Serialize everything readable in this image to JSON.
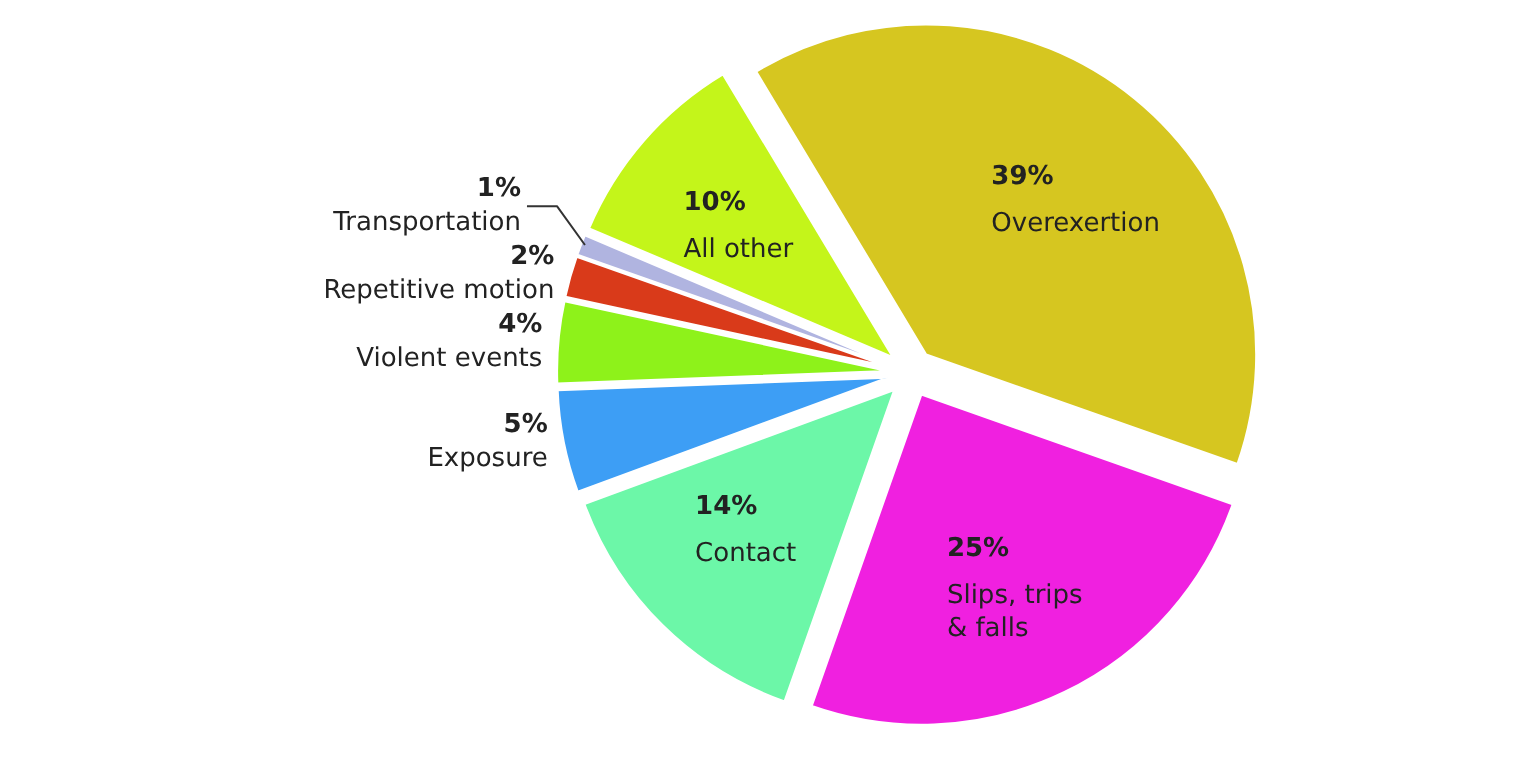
{
  "chart_data": {
    "type": "pie",
    "categories": [
      "Overexertion",
      "Slips, trips\n& falls",
      "Contact",
      "Exposure",
      "Violent\nevents",
      "Repetitive\nmotion",
      "Transportation",
      "All other"
    ],
    "values": [
      39,
      25,
      14,
      5,
      4,
      2,
      1,
      10
    ],
    "colors": [
      "#d6c620",
      "#f020e0",
      "#6cf7a8",
      "#3d9ef5",
      "#8ef21a",
      "#d93a1a",
      "#b0b4e0",
      "#c4f51a"
    ],
    "value_labels": [
      "39%",
      "25%",
      "14%",
      "5%",
      "4%",
      "2%",
      "1%",
      "10%"
    ]
  }
}
